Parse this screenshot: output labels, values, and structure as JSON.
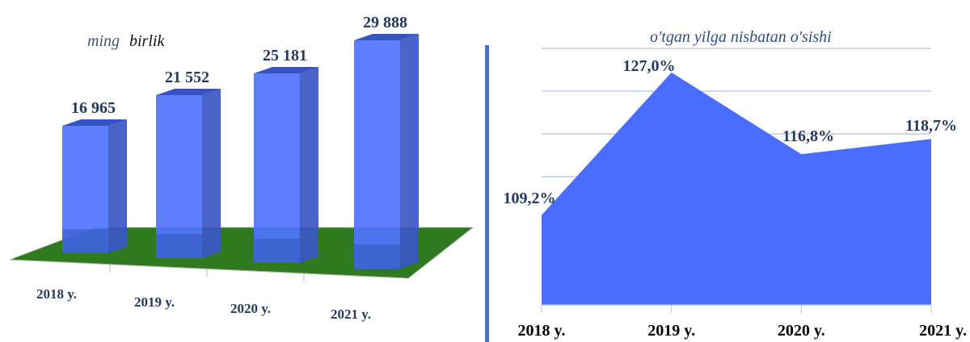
{
  "chart_data": [
    {
      "type": "bar",
      "title": "",
      "unit_label": {
        "part1": "ming",
        "part2": "birlik"
      },
      "categories": [
        "2018 y.",
        "2019 y.",
        "2020 y.",
        "2021 y."
      ],
      "values": [
        16965,
        21552,
        25181,
        29888
      ],
      "value_labels": [
        "16 965",
        "21 552",
        "25 181",
        "29 888"
      ],
      "ylim": [
        0,
        30000
      ],
      "grid": false,
      "legend": "none",
      "colors": {
        "bar": "#4f74ff",
        "bar_side": "#3a56c4",
        "bar_top": "#3553c2",
        "floor": "#2f7a1e"
      }
    },
    {
      "type": "area",
      "title": "o'tgan yilga nisbatan o'sishi",
      "categories": [
        "2018 y.",
        "2019 y.",
        "2020 y.",
        "2021 y."
      ],
      "values": [
        109.2,
        127.0,
        116.8,
        118.7
      ],
      "value_labels": [
        "109,2%",
        "127,0%",
        "116,8%",
        "118,7%"
      ],
      "ylim": [
        98,
        130
      ],
      "grid": true,
      "legend": "none",
      "colors": {
        "area": "#4a6cff",
        "grid": "#9db3d9",
        "axis": "#4472c4"
      }
    }
  ]
}
